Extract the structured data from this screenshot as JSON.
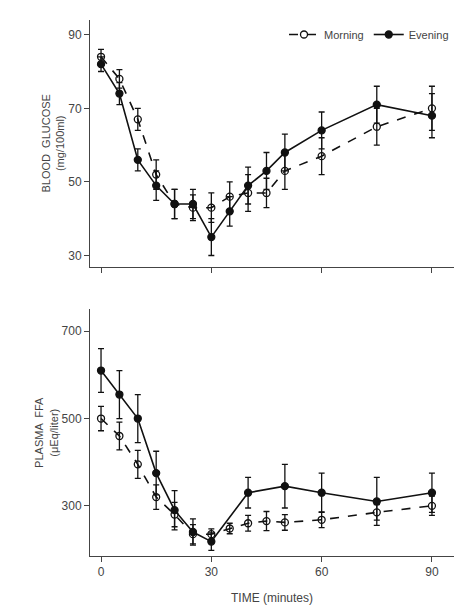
{
  "chart_data": [
    {
      "type": "line",
      "xlim": [
        -3,
        96
      ],
      "xticks": [
        0,
        30,
        60,
        90
      ],
      "ylim": [
        27,
        94
      ],
      "yticks": [
        30,
        50,
        70,
        90
      ],
      "ylabel": "BLOOD  GLUCOSE\n(mg/100ml)",
      "grid": false,
      "legend": "upper right",
      "tick_labels": "y",
      "series": [
        {
          "name": "Morning",
          "color": "#111111",
          "marker": "circle-open",
          "line_style": "dash",
          "x": [
            0,
            5,
            10,
            15,
            20,
            25,
            30,
            35,
            40,
            45,
            50,
            60,
            75,
            90
          ],
          "values": [
            84,
            78,
            67,
            52,
            44,
            43,
            43,
            46,
            47,
            47,
            53,
            57,
            65,
            70
          ],
          "errors": [
            2,
            2.5,
            3,
            4,
            4,
            3.5,
            4,
            4,
            5,
            4,
            5,
            5,
            5,
            6
          ]
        },
        {
          "name": "Evening",
          "color": "#111111",
          "marker": "circle",
          "line_style": "solid",
          "x": [
            0,
            5,
            10,
            15,
            20,
            25,
            30,
            35,
            40,
            45,
            50,
            60,
            75,
            90
          ],
          "values": [
            82,
            74,
            56,
            49,
            44,
            44,
            35,
            42,
            49,
            53,
            58,
            64,
            71,
            68
          ],
          "errors": [
            2,
            3,
            3,
            4,
            4,
            4,
            5,
            4,
            5,
            5,
            5,
            5,
            5,
            6
          ]
        }
      ]
    },
    {
      "type": "line",
      "xlim": [
        -3,
        96
      ],
      "xticks": [
        0,
        30,
        60,
        90
      ],
      "ylim": [
        185,
        750
      ],
      "yticks": [
        300,
        500,
        700
      ],
      "ylabel": "PLASMA  FFA\n(μEq/liter)",
      "xlabel": "TIME (minutes)",
      "grid": false,
      "series": [
        {
          "color": "#111111",
          "marker": "circle-open",
          "line_style": "dash",
          "x": [
            0,
            5,
            10,
            15,
            20,
            25,
            30,
            35,
            40,
            45,
            50,
            60,
            75,
            90
          ],
          "values": [
            500,
            460,
            395,
            320,
            280,
            235,
            235,
            248,
            260,
            265,
            262,
            268,
            285,
            300
          ],
          "errors": [
            28,
            32,
            32,
            28,
            28,
            22,
            12,
            12,
            18,
            22,
            18,
            18,
            18,
            22
          ]
        },
        {
          "color": "#111111",
          "marker": "circle",
          "line_style": "solid",
          "x": [
            0,
            5,
            10,
            15,
            20,
            25,
            30,
            40,
            50,
            60,
            75,
            90
          ],
          "values": [
            610,
            555,
            500,
            375,
            290,
            240,
            218,
            330,
            345,
            330,
            310,
            330
          ],
          "errors": [
            50,
            55,
            55,
            50,
            45,
            30,
            20,
            35,
            50,
            45,
            55,
            45
          ]
        }
      ]
    }
  ]
}
